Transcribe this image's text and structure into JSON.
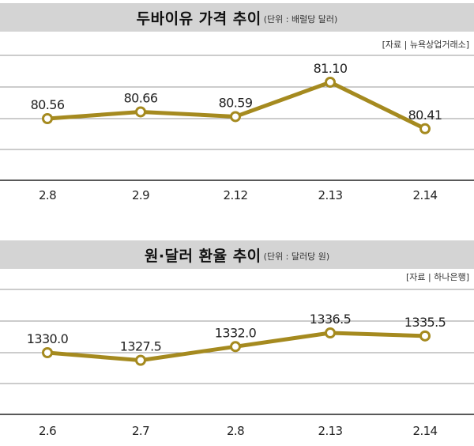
{
  "chart_data": [
    {
      "type": "line",
      "title": "두바이유 가격 추이",
      "subtitle": "(단위 : 배럴당 달러)",
      "source": "[자료 | 뉴욕상업거래소]",
      "categories": [
        "2.8",
        "2.9",
        "2.12",
        "2.13",
        "2.14"
      ],
      "values": [
        80.56,
        80.66,
        80.59,
        81.1,
        80.41
      ],
      "value_labels": [
        "80.56",
        "80.66",
        "80.59",
        "81.10",
        "80.41"
      ],
      "grid": true,
      "line_color": "#a58a1f"
    },
    {
      "type": "line",
      "title": "원·달러 환율 추이",
      "subtitle": "(단위 : 달러당 원)",
      "source": "[자료 | 하나은행]",
      "categories": [
        "2.6",
        "2.7",
        "2.8",
        "2.13",
        "2.14"
      ],
      "values": [
        1330.0,
        1327.5,
        1332.0,
        1336.5,
        1335.5
      ],
      "value_labels": [
        "1330.0",
        "1327.5",
        "1332.0",
        "1336.5",
        "1335.5"
      ],
      "grid": true,
      "line_color": "#a58a1f"
    }
  ]
}
